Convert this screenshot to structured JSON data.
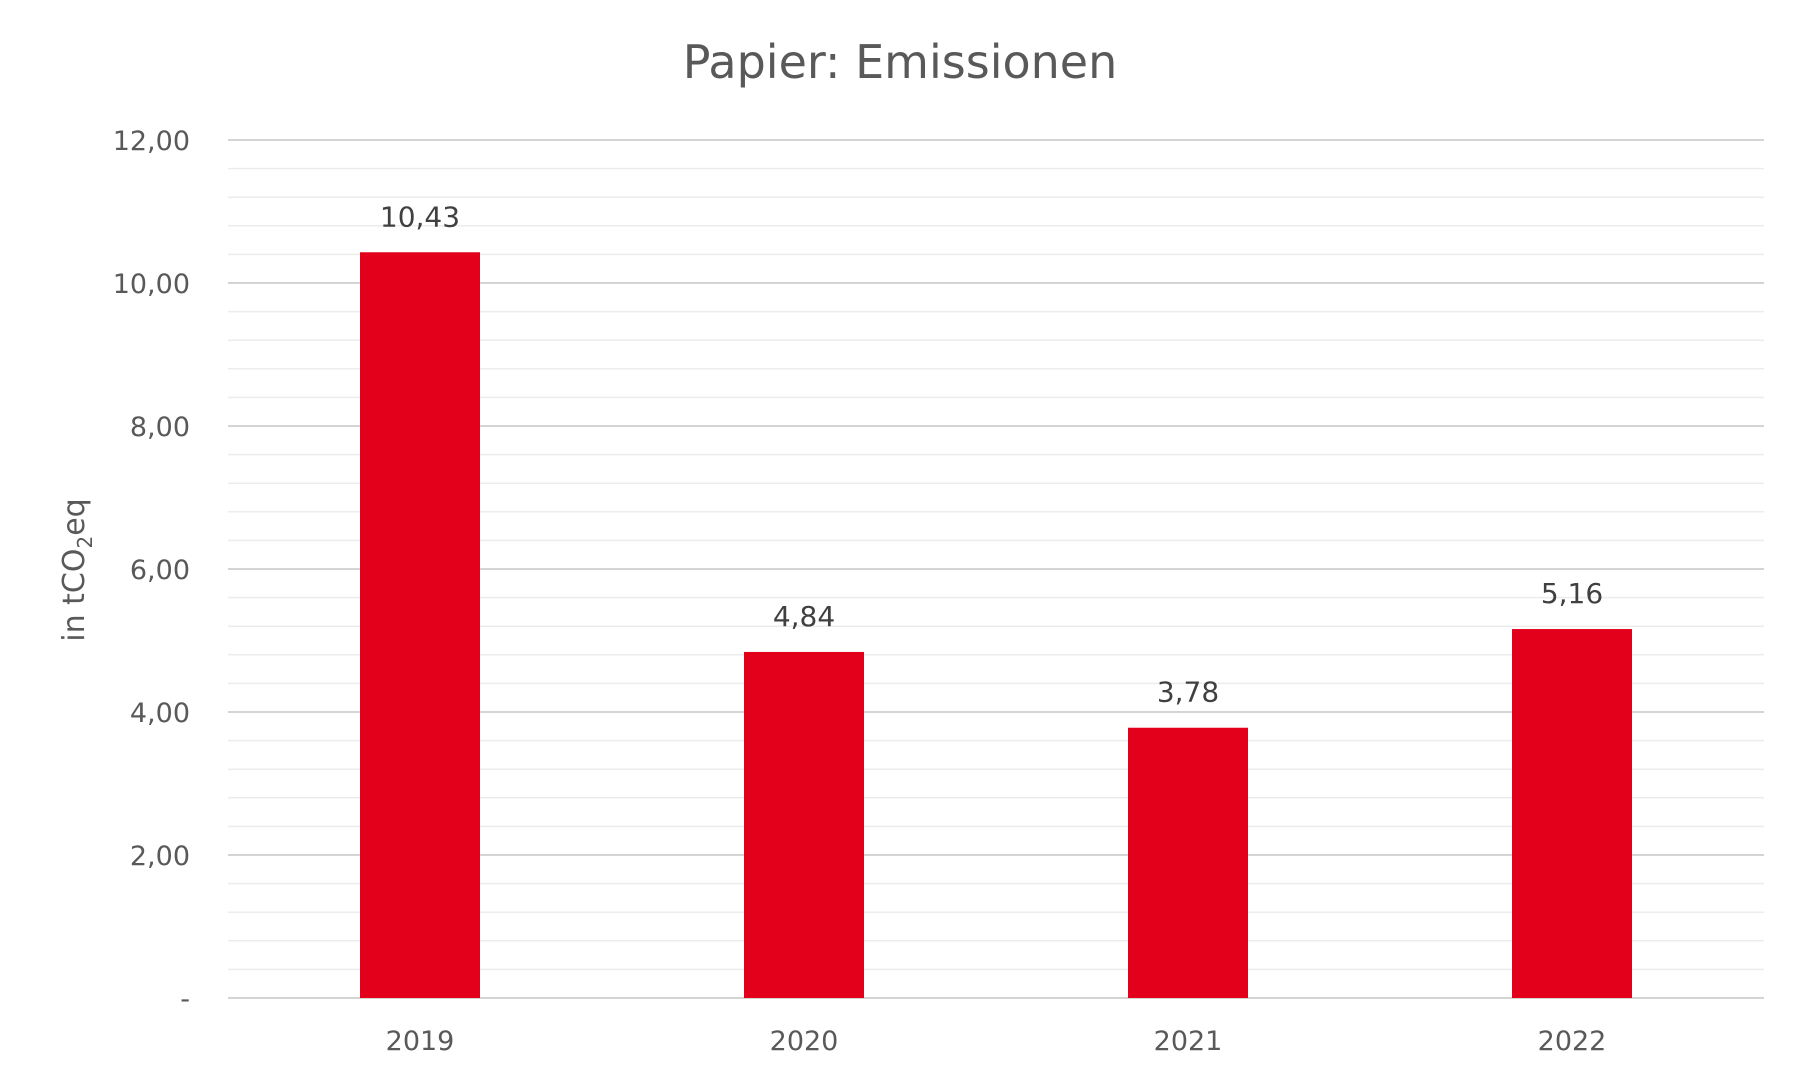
{
  "chart_data": {
    "type": "bar",
    "title": "Papier: Emissionen",
    "ylabel": "in tCO2eq",
    "ylabel_parts": {
      "before": "in tCO",
      "subscript": "2",
      "after": "eq"
    },
    "xlabel": "",
    "categories": [
      "2019",
      "2020",
      "2021",
      "2022"
    ],
    "series": [
      {
        "values": [
          10.43,
          4.84,
          3.78,
          5.16
        ],
        "value_labels": [
          "10,43",
          "4,84",
          "3,78",
          "5,16"
        ],
        "color": "#e2001a"
      }
    ],
    "ylim": [
      0,
      12
    ],
    "yticks": [
      {
        "value": 0,
        "label": "-"
      },
      {
        "value": 2,
        "label": "2,00"
      },
      {
        "value": 4,
        "label": "4,00"
      },
      {
        "value": 6,
        "label": "6,00"
      },
      {
        "value": 8,
        "label": "8,00"
      },
      {
        "value": 10,
        "label": "10,00"
      },
      {
        "value": 12,
        "label": "12,00"
      }
    ],
    "minor_gridline_step": 0.4,
    "grid": true,
    "legend": "none",
    "colors": {
      "bar": "#e2001a",
      "major_grid": "#d4d4d4",
      "minor_grid": "#ececec",
      "text": "#595959",
      "data_label": "#404040"
    }
  }
}
